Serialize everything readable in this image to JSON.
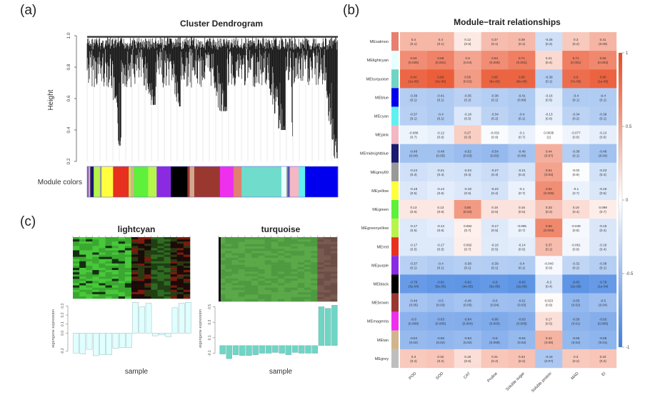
{
  "panels": {
    "a": "(a)",
    "b": "(b)",
    "c": "(c)"
  },
  "chart_data": [
    {
      "type": "dendrogram",
      "panel": "a",
      "title": "Cluster Dendrogram",
      "ylabel": "Height",
      "yticks": [
        "0.2",
        "0.4",
        "0.6",
        "0.8",
        "1.0"
      ],
      "ylim": [
        0.2,
        1.0
      ],
      "color_bar_label": "Module colors",
      "module_color_sequence": [
        {
          "color": "#8a4fd0",
          "w": 0.5
        },
        {
          "color": "#d2b48c",
          "w": 0.6
        },
        {
          "color": "#1a1a6e",
          "w": 1.2
        },
        {
          "color": "#b7f54a",
          "w": 2.2
        },
        {
          "color": "#999999",
          "w": 0.6
        },
        {
          "color": "#ffff40",
          "w": 4.0
        },
        {
          "color": "#e8301e",
          "w": 5.5
        },
        {
          "color": "#b7f54a",
          "w": 0.6
        },
        {
          "color": "#d2b48c",
          "w": 1.2
        },
        {
          "color": "#5ef03a",
          "w": 5.0
        },
        {
          "color": "#b7f54a",
          "w": 3.0
        },
        {
          "color": "#8a2be2",
          "w": 5.0
        },
        {
          "color": "#000000",
          "w": 5.8
        },
        {
          "color": "#9a3830",
          "w": 0.8
        },
        {
          "color": "#d2a890",
          "w": 1.6
        },
        {
          "color": "#9a3830",
          "w": 9.0
        },
        {
          "color": "#ee30ee",
          "w": 4.8
        },
        {
          "color": "#e08070",
          "w": 2.8
        },
        {
          "color": "#70dccc",
          "w": 14.0
        },
        {
          "color": "#e8ffff",
          "w": 1.8
        },
        {
          "color": "#888888",
          "w": 0.5
        },
        {
          "color": "#5050b0",
          "w": 0.6
        },
        {
          "color": "#f4b8c4",
          "w": 3.2
        },
        {
          "color": "#60f0f0",
          "w": 2.2
        },
        {
          "color": "#0000ee",
          "w": 11.5
        }
      ]
    },
    {
      "type": "heatmap",
      "panel": "b",
      "title": "Module−trait relationships",
      "columns": [
        "POD",
        "SOD",
        "CAT",
        "Proline",
        "Soluble sugar",
        "Soluble protein",
        "MAD",
        "EI"
      ],
      "colorbar": {
        "ticks": [
          "1",
          "0.5",
          "0",
          "-0.5",
          "-1"
        ],
        "range": [
          -1,
          1
        ],
        "low": "#3d7fe0",
        "mid": "#ffffff",
        "high": "#e84a22"
      },
      "rows": [
        {
          "module": "MEsalmon",
          "color": "#e8806e",
          "r": [
            0.4,
            0.4,
            0.12,
            0.37,
            0.39,
            -0.25,
            0.3,
            0.41
          ],
          "p": [
            "0.1",
            "0.1",
            "0.6",
            "0.1",
            "0.1",
            "0.3",
            "0.2",
            "0.08"
          ]
        },
        {
          "module": "MElightcyan",
          "color": "#e8ffff",
          "r": [
            0.63,
            0.69,
            0.5,
            0.63,
            0.71,
            0.21,
            0.71,
            0.66
          ],
          "p": [
            "0.005",
            "0.001",
            "0.04",
            "0.005",
            "0.001",
            "0.4",
            "0.001",
            "0.003"
          ]
        },
        {
          "module": "MEturquoise",
          "color": "#6fd5c5",
          "r": [
            0.84,
            0.89,
            0.55,
            0.85,
            0.85,
            -0.39,
            0.8,
            0.86
          ],
          "p": [
            "1e-05",
            "3e-06",
            "0.02",
            "8e-06",
            "8e-06",
            "0.1",
            "7e-05",
            "1e-06"
          ]
        },
        {
          "module": "MEblue",
          "color": "#0000ee",
          "r": [
            -0.39,
            -0.41,
            -0.35,
            -0.38,
            -0.41,
            -0.16,
            -0.4,
            -0.4
          ],
          "p": [
            "0.1",
            "0.1",
            "0.2",
            "0.1",
            "0.09",
            "0.5",
            "0.1",
            "0.1"
          ]
        },
        {
          "module": "MEcyan",
          "color": "#60f0f0",
          "r": [
            -0.37,
            -0.4,
            -0.18,
            -0.34,
            -0.4,
            -0.13,
            -0.34,
            -0.39
          ],
          "p": [
            "0.1",
            "0.1",
            "0.5",
            "0.2",
            "0.1",
            "0.6",
            "0.2",
            "0.1"
          ]
        },
        {
          "module": "MEpink",
          "color": "#f4b8c4",
          "r": [
            -0.086,
            -0.12,
            0.27,
            -0.032,
            -0.1,
            0.0035,
            -0.077,
            -0.13
          ],
          "p": [
            "0.7",
            "0.6",
            "0.3",
            "0.9",
            "0.7",
            "1",
            "0.8",
            "0.6"
          ]
        },
        {
          "module": "MEmidnightblue",
          "color": "#1a1a6e",
          "r": [
            -0.48,
            -0.48,
            -0.52,
            -0.54,
            -0.46,
            0.44,
            -0.38,
            -0.48
          ],
          "p": [
            "0.04",
            "0.05",
            "0.03",
            "0.02",
            "0.06",
            "0.07",
            "0.1",
            "0.04"
          ]
        },
        {
          "module": "MEgrey60",
          "color": "#999999",
          "r": [
            -0.24,
            -0.21,
            -0.23,
            -0.27,
            -0.21,
            0.51,
            -0.02,
            -0.23
          ],
          "p": [
            "0.3",
            "0.4",
            "0.4",
            "0.3",
            "0.4",
            "0.03",
            "0.9",
            "0.4"
          ]
        },
        {
          "module": "MEyellow",
          "color": "#ffff40",
          "r": [
            -0.18,
            -0.14,
            -0.18,
            -0.22,
            -0.1,
            0.62,
            -0.1,
            -0.19
          ],
          "p": [
            "0.5",
            "0.6",
            "0.5",
            "0.4",
            "0.7",
            "0.006",
            "0.7",
            "0.5"
          ]
        },
        {
          "module": "MEgreen",
          "color": "#5ef03a",
          "r": [
            0.13,
            0.13,
            0.56,
            0.16,
            0.16,
            0.33,
            0.19,
            0.099
          ],
          "p": [
            "0.6",
            "0.6",
            "0.02",
            "0.5",
            "0.5",
            "0.2",
            "0.4",
            "0.7"
          ]
        },
        {
          "module": "MEgreenyellow",
          "color": "#b7f54a",
          "r": [
            -0.17,
            -0.14,
            0.082,
            -0.17,
            -0.095,
            0.66,
            -0.049,
            -0.19
          ],
          "p": [
            "0.5",
            "0.6",
            "0.7",
            "0.5",
            "0.7",
            "0.003",
            "0.8",
            "0.4"
          ]
        },
        {
          "module": "MEred",
          "color": "#e8301e",
          "r": [
            -0.17,
            -0.17,
            0.092,
            -0.16,
            -0.14,
            0.37,
            -0.061,
            -0.19
          ],
          "p": [
            "0.5",
            "0.5",
            "0.7",
            "0.5",
            "0.6",
            "0.1",
            "0.8",
            "0.4"
          ]
        },
        {
          "module": "MEpurple",
          "color": "#8a2be2",
          "r": [
            -0.37,
            -0.4,
            -0.38,
            -0.39,
            -0.4,
            -0.043,
            -0.32,
            -0.38
          ],
          "p": [
            "0.1",
            "0.1",
            "0.1",
            "0.1",
            "0.1",
            "0.9",
            "0.2",
            "0.1"
          ]
        },
        {
          "module": "MEblack",
          "color": "#000000",
          "r": [
            -0.78,
            -0.81,
            -0.82,
            -0.8,
            -0.83,
            -0.2,
            -0.83,
            -0.79
          ],
          "p": [
            "3e-04",
            "5e-05",
            "4e-05",
            "5e-05",
            "2e-05",
            "0.4",
            "2e-05",
            "1e-04"
          ]
        },
        {
          "module": "MEbrown",
          "color": "#9a3830",
          "r": [
            -0.46,
            -0.5,
            -0.46,
            -0.5,
            -0.51,
            0.023,
            -0.55,
            -0.5
          ],
          "p": [
            "0.05",
            "0.03",
            "0.05",
            "0.04",
            "0.03",
            "0.9",
            "0.02",
            "0.04"
          ]
        },
        {
          "module": "MEmagenta",
          "color": "#ee30ee",
          "r": [
            -0.6,
            -0.63,
            -0.64,
            -0.66,
            -0.63,
            0.17,
            -0.59,
            -0.63
          ],
          "p": [
            "0.008",
            "0.005",
            "0.004",
            "0.003",
            "0.005",
            "0.5",
            "0.01",
            "0.005"
          ]
        },
        {
          "module": "MEtan",
          "color": "#d2b48c",
          "r": [
            -0.54,
            -0.56,
            -0.53,
            -0.6,
            -0.54,
            0.42,
            -0.55,
            -0.58
          ],
          "p": [
            "0.02",
            "0.02",
            "0.02",
            "0.008",
            "0.02",
            "0.08",
            "0.02",
            "0.01"
          ]
        },
        {
          "module": "MEgrey",
          "color": "#bebebe",
          "r": [
            0.3,
            0.32,
            0.18,
            0.31,
            0.34,
            -0.43,
            0.3,
            0.32
          ],
          "p": [
            "0.2",
            "0.2",
            "0.5",
            "0.2",
            "0.2",
            "0.07",
            "0.2",
            "0.2"
          ]
        }
      ]
    },
    {
      "type": "bar",
      "panel": "c-left",
      "title": "lightcyan",
      "xlabel": "sample",
      "ylabel": "eigengene expression",
      "yticks": [
        "-0.2",
        "0.0",
        "0.1",
        "0.2",
        "0.3"
      ],
      "ylim": [
        -0.25,
        0.35
      ],
      "bar_color": "#e0ffff",
      "values": [
        -0.22,
        -0.23,
        -0.18,
        -0.25,
        -0.24,
        -0.24,
        -0.17,
        -0.16,
        -0.16,
        0.34,
        0.29,
        0.33,
        -0.03,
        -0.02,
        -0.04,
        0.28,
        0.33,
        0.34
      ]
    },
    {
      "type": "bar",
      "panel": "c-right",
      "title": "turquoise",
      "xlabel": "sample",
      "ylabel": "eigengene expression",
      "yticks": [
        "-0.1",
        "0.1",
        "0.3",
        "0.5"
      ],
      "ylim": [
        -0.15,
        0.55
      ],
      "bar_color": "#6fd5c5",
      "values": [
        -0.11,
        -0.17,
        -0.12,
        -0.13,
        -0.13,
        -0.12,
        -0.1,
        -0.1,
        -0.09,
        -0.1,
        -0.12,
        -0.09,
        -0.1,
        -0.1,
        -0.1,
        0.5,
        0.48,
        0.52
      ]
    }
  ]
}
